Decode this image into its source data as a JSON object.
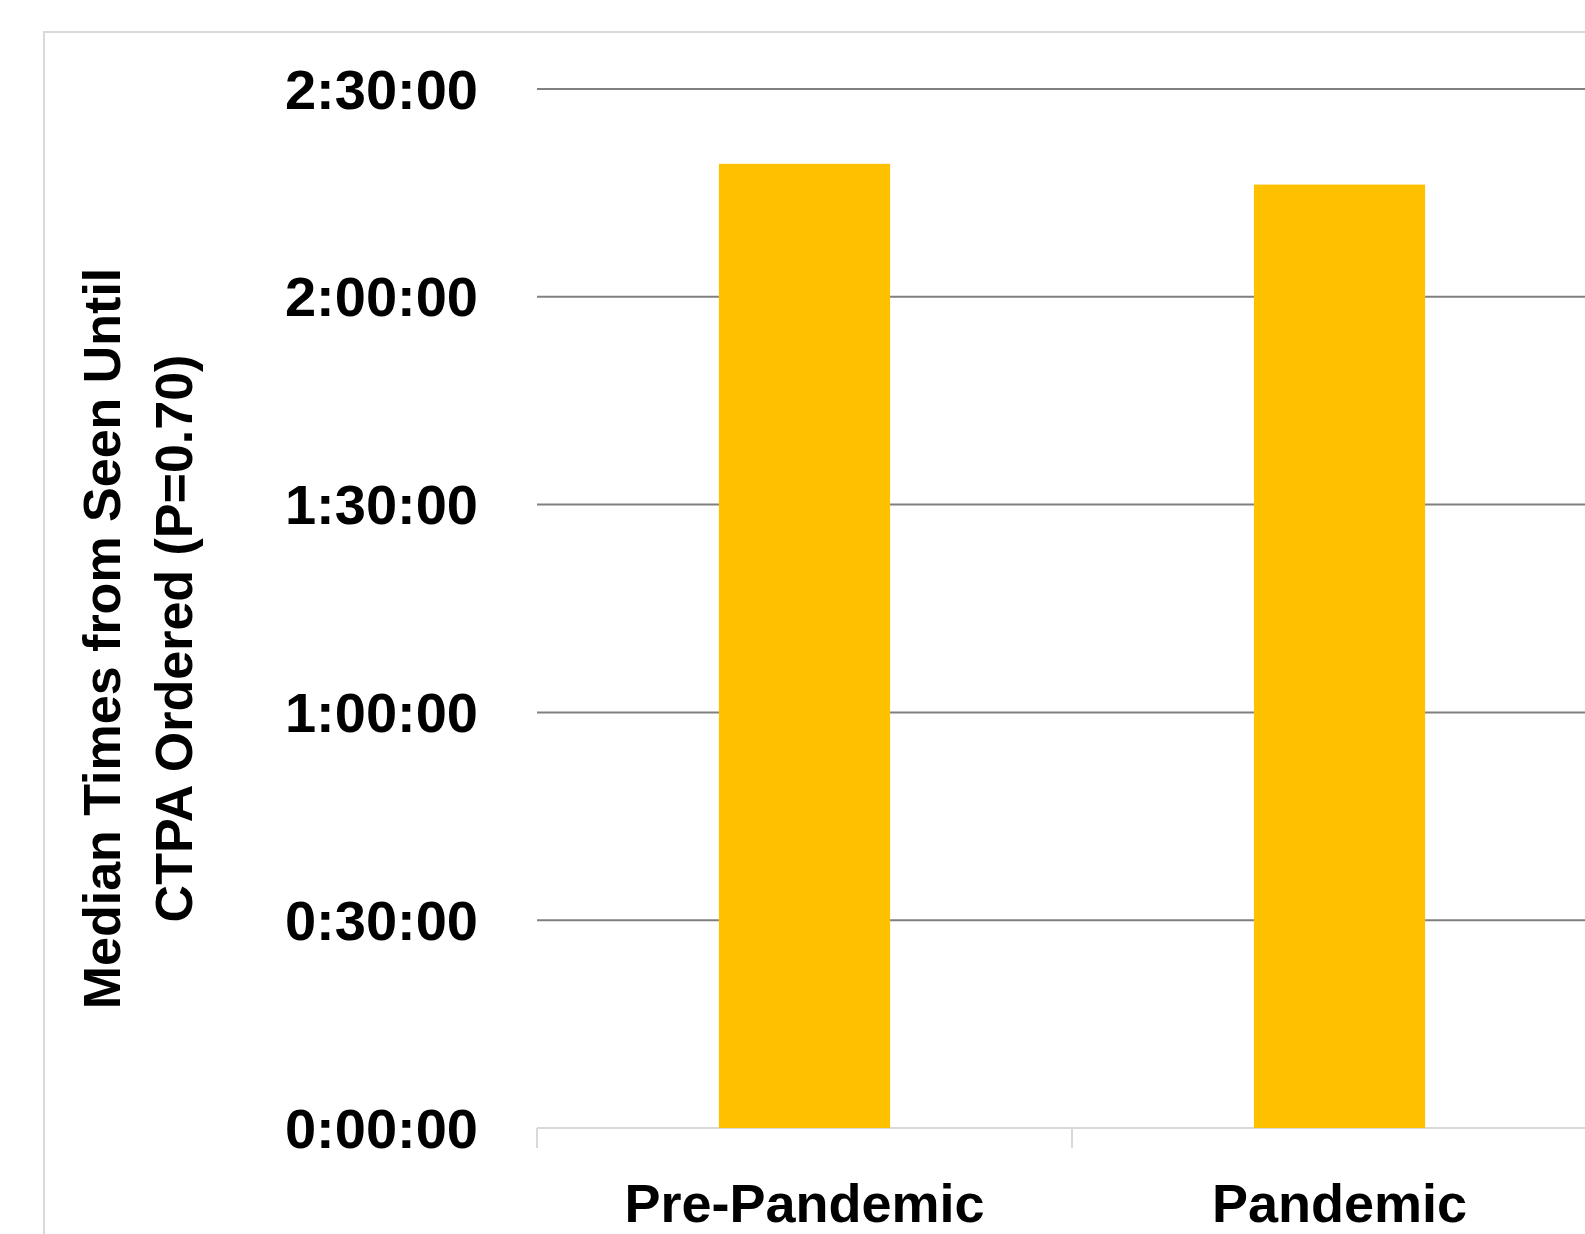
{
  "chart_data": {
    "type": "bar",
    "ylabel": "Median Times from Seen Until\nCTPA Ordered (P=0.70)",
    "categories": [
      "Pre-Pandemic",
      "Pandemic"
    ],
    "values": [
      2.32,
      2.27
    ],
    "color": "#ffc000",
    "ylim": [
      0,
      2.5
    ],
    "yticks": [
      {
        "value": 0,
        "label": "0:00:00"
      },
      {
        "value": 0.5,
        "label": "0:30:00"
      },
      {
        "value": 1,
        "label": "1:00:00"
      },
      {
        "value": 1.5,
        "label": "1:30:00"
      },
      {
        "value": 2,
        "label": "2:00:00"
      },
      {
        "value": 2.5,
        "label": "2:30:00"
      }
    ],
    "grid": "y"
  }
}
